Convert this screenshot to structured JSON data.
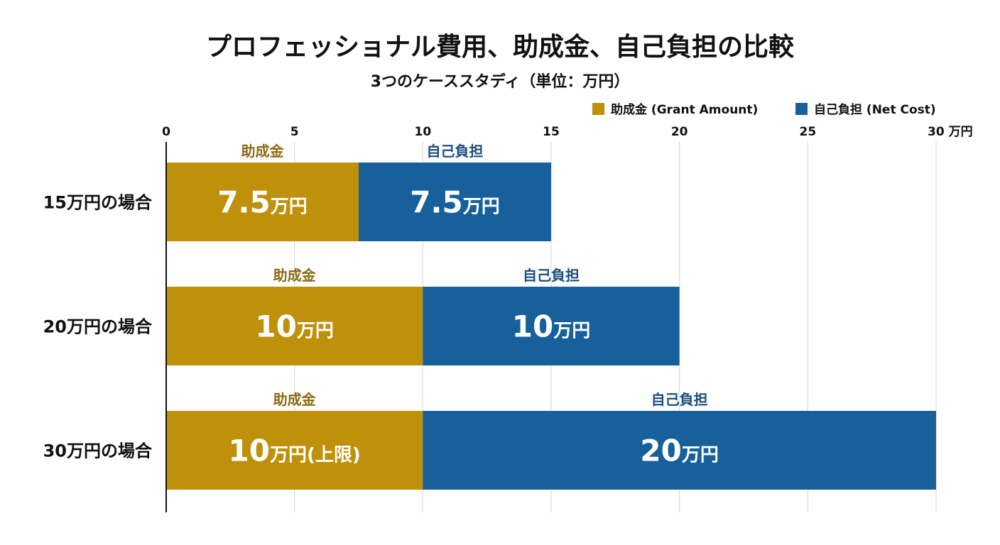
{
  "chart_data": {
    "type": "bar",
    "orientation": "horizontal",
    "stacked": true,
    "title": "プロフェッショナル費用、助成金、自己負担の比較",
    "subtitle": "3つのケーススタディ（単位：万円）",
    "categories": [
      "15万円の場合",
      "20万円の場合",
      "30万円の場合"
    ],
    "series": [
      {
        "name": "助成金 (Grant Amount)",
        "segment_label": "助成金",
        "color": "#BF9009",
        "label_color": "#8C6A12",
        "values": [
          7.5,
          10,
          10
        ],
        "value_labels": [
          [
            "7.5",
            "万円"
          ],
          [
            "10",
            "万円"
          ],
          [
            "10",
            "万円(上限)"
          ]
        ]
      },
      {
        "name": "自己負担 (Net Cost)",
        "segment_label": "自己負担",
        "color": "#17609C",
        "label_color": "#1C4F7E",
        "values": [
          7.5,
          10,
          20
        ],
        "value_labels": [
          [
            "7.5",
            "万円"
          ],
          [
            "10",
            "万円"
          ],
          [
            "20",
            "万円"
          ]
        ]
      }
    ],
    "xlim": [
      0,
      30
    ],
    "xticks": [
      "0",
      "5",
      "10",
      "15",
      "20",
      "25",
      "30 万円"
    ],
    "xtick_values": [
      0,
      5,
      10,
      15,
      20,
      25,
      30
    ],
    "grid": true,
    "legend": "top-right",
    "axis_position": "top"
  }
}
